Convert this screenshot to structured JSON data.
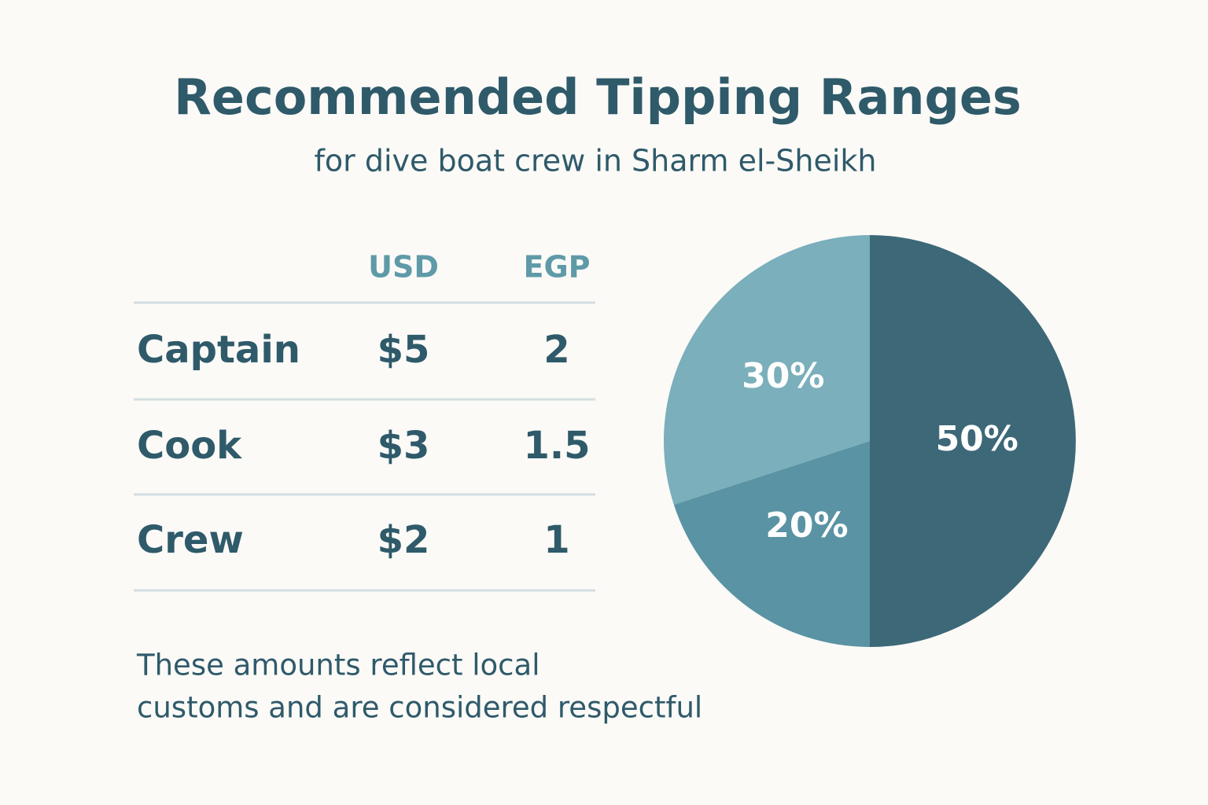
{
  "header": {
    "title": "Recommended Tipping Ranges",
    "subtitle": "for dive boat crew in Sharm el-Sheikh"
  },
  "table": {
    "columns": [
      "USD",
      "EGP"
    ],
    "rows": [
      [
        "Captain",
        "$5",
        "2"
      ],
      [
        "Cook",
        "$3",
        "1.5"
      ],
      [
        "Crew",
        "$2",
        "1"
      ]
    ]
  },
  "note": [
    "These amounts reflect local",
    "customs and are considered respectful"
  ],
  "chart_data": {
    "type": "pie",
    "categories": [
      null,
      null,
      null
    ],
    "values": [
      50,
      20,
      30
    ],
    "value_labels": [
      "50%",
      "20%",
      "30%"
    ],
    "colors": [
      "#3d6878",
      "#5a93a3",
      "#7aafbb"
    ]
  }
}
